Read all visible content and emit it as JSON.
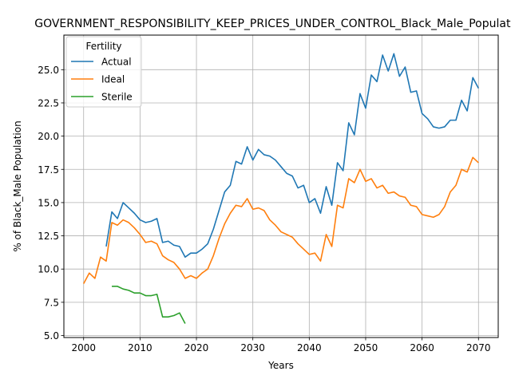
{
  "chart_data": {
    "type": "line",
    "title": "GOVERNMENT_RESPONSIBILITY_KEEP_PRICES_UNDER_CONTROL_Black_Male_Population",
    "xlabel": "Years",
    "ylabel": "% of Black_Male Population",
    "xlim": [
      1996.5,
      2073.5
    ],
    "ylim": [
      4.85,
      27.6
    ],
    "xticks": [
      2000,
      2010,
      2020,
      2030,
      2040,
      2050,
      2060,
      2070
    ],
    "yticks": [
      5.0,
      7.5,
      10.0,
      12.5,
      15.0,
      17.5,
      20.0,
      22.5,
      25.0
    ],
    "xtick_labels": [
      "2000",
      "2010",
      "2020",
      "2030",
      "2040",
      "2050",
      "2060",
      "2070"
    ],
    "ytick_labels": [
      "5.0",
      "7.5",
      "10.0",
      "12.5",
      "15.0",
      "17.5",
      "20.0",
      "22.5",
      "25.0"
    ],
    "grid": true,
    "legend": {
      "title": "Fertility",
      "placement": "top-left"
    },
    "series": [
      {
        "name": "Actual",
        "color": "#1f77b4",
        "x": [
          2004,
          2005,
          2006,
          2007,
          2008,
          2009,
          2010,
          2011,
          2012,
          2013,
          2014,
          2015,
          2016,
          2017,
          2018,
          2019,
          2020,
          2021,
          2022,
          2023,
          2024,
          2025,
          2026,
          2027,
          2028,
          2029,
          2030,
          2031,
          2032,
          2033,
          2034,
          2035,
          2036,
          2037,
          2038,
          2039,
          2040,
          2041,
          2042,
          2043,
          2044,
          2045,
          2046,
          2047,
          2048,
          2049,
          2050,
          2051,
          2052,
          2053,
          2054,
          2055,
          2056,
          2057,
          2058,
          2059,
          2060,
          2061,
          2062,
          2063,
          2064,
          2065,
          2066,
          2067,
          2068,
          2069,
          2070
        ],
        "y": [
          11.7,
          14.3,
          13.8,
          15.0,
          14.6,
          14.2,
          13.7,
          13.5,
          13.6,
          13.8,
          12.0,
          12.1,
          11.8,
          11.7,
          10.9,
          11.2,
          11.2,
          11.5,
          11.9,
          13.0,
          14.4,
          15.8,
          16.3,
          18.1,
          17.9,
          19.2,
          18.2,
          19.0,
          18.6,
          18.5,
          18.2,
          17.7,
          17.2,
          17.0,
          16.1,
          16.3,
          15.0,
          15.3,
          14.2,
          16.2,
          14.8,
          18.0,
          17.4,
          21.0,
          20.1,
          23.2,
          22.1,
          24.6,
          24.1,
          26.1,
          24.9,
          26.2,
          24.5,
          25.2,
          23.3,
          23.4,
          21.7,
          21.3,
          20.7,
          20.6,
          20.7,
          21.2,
          21.2,
          22.7,
          21.9,
          24.4,
          23.6
        ]
      },
      {
        "name": "Ideal",
        "color": "#ff7f0e",
        "x": [
          2000,
          2001,
          2002,
          2003,
          2004,
          2005,
          2006,
          2007,
          2008,
          2009,
          2010,
          2011,
          2012,
          2013,
          2014,
          2015,
          2016,
          2017,
          2018,
          2019,
          2020,
          2021,
          2022,
          2023,
          2024,
          2025,
          2026,
          2027,
          2028,
          2029,
          2030,
          2031,
          2032,
          2033,
          2034,
          2035,
          2036,
          2037,
          2038,
          2039,
          2040,
          2041,
          2042,
          2043,
          2044,
          2045,
          2046,
          2047,
          2048,
          2049,
          2050,
          2051,
          2052,
          2053,
          2054,
          2055,
          2056,
          2057,
          2058,
          2059,
          2060,
          2061,
          2062,
          2063,
          2064,
          2065,
          2066,
          2067,
          2068,
          2069,
          2070
        ],
        "y": [
          8.9,
          9.7,
          9.3,
          10.9,
          10.6,
          13.5,
          13.3,
          13.7,
          13.5,
          13.1,
          12.6,
          12.0,
          12.1,
          11.9,
          11.0,
          10.7,
          10.5,
          10.0,
          9.3,
          9.5,
          9.3,
          9.7,
          10.0,
          11.0,
          12.3,
          13.4,
          14.2,
          14.8,
          14.7,
          15.3,
          14.5,
          14.6,
          14.4,
          13.7,
          13.3,
          12.8,
          12.6,
          12.4,
          11.9,
          11.5,
          11.1,
          11.2,
          10.6,
          12.6,
          11.7,
          14.8,
          14.6,
          16.8,
          16.5,
          17.5,
          16.6,
          16.8,
          16.1,
          16.3,
          15.7,
          15.8,
          15.5,
          15.4,
          14.8,
          14.7,
          14.1,
          14.0,
          13.9,
          14.1,
          14.7,
          15.8,
          16.3,
          17.5,
          17.3,
          18.4,
          18.0
        ]
      },
      {
        "name": "Sterile",
        "color": "#2ca02c",
        "x": [
          2005,
          2006,
          2007,
          2008,
          2009,
          2010,
          2011,
          2012,
          2013,
          2014,
          2015,
          2016,
          2017,
          2018
        ],
        "y": [
          8.7,
          8.7,
          8.5,
          8.4,
          8.2,
          8.2,
          8.0,
          8.0,
          8.1,
          6.4,
          6.4,
          6.5,
          6.7,
          5.9
        ]
      }
    ]
  }
}
